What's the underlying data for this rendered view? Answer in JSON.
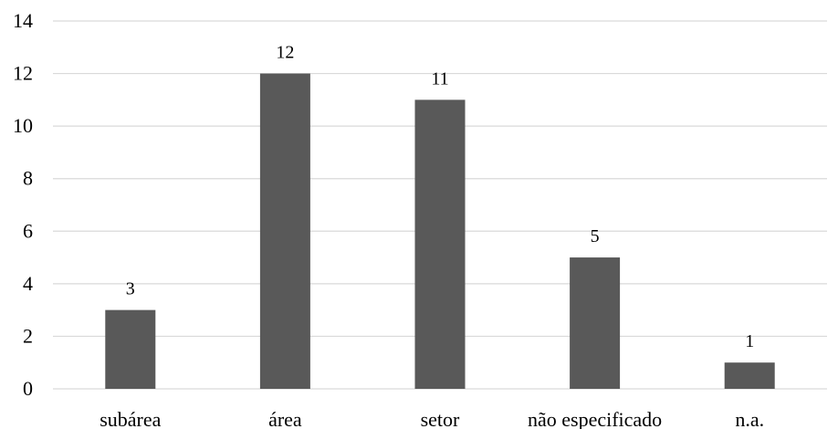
{
  "chart_data": {
    "type": "bar",
    "categories": [
      "subárea",
      "área",
      "setor",
      "não especificado",
      "n.a."
    ],
    "values": [
      3,
      12,
      11,
      5,
      1
    ],
    "data_labels": [
      "3",
      "12",
      "11",
      "5",
      "1"
    ],
    "y_ticks": [
      "0",
      "2",
      "4",
      "6",
      "8",
      "10",
      "12",
      "14"
    ],
    "ylim": [
      0,
      14
    ],
    "grid": true,
    "legend": "none",
    "colors": {
      "bar": "#595959",
      "grid": "#d9d9d9"
    }
  }
}
